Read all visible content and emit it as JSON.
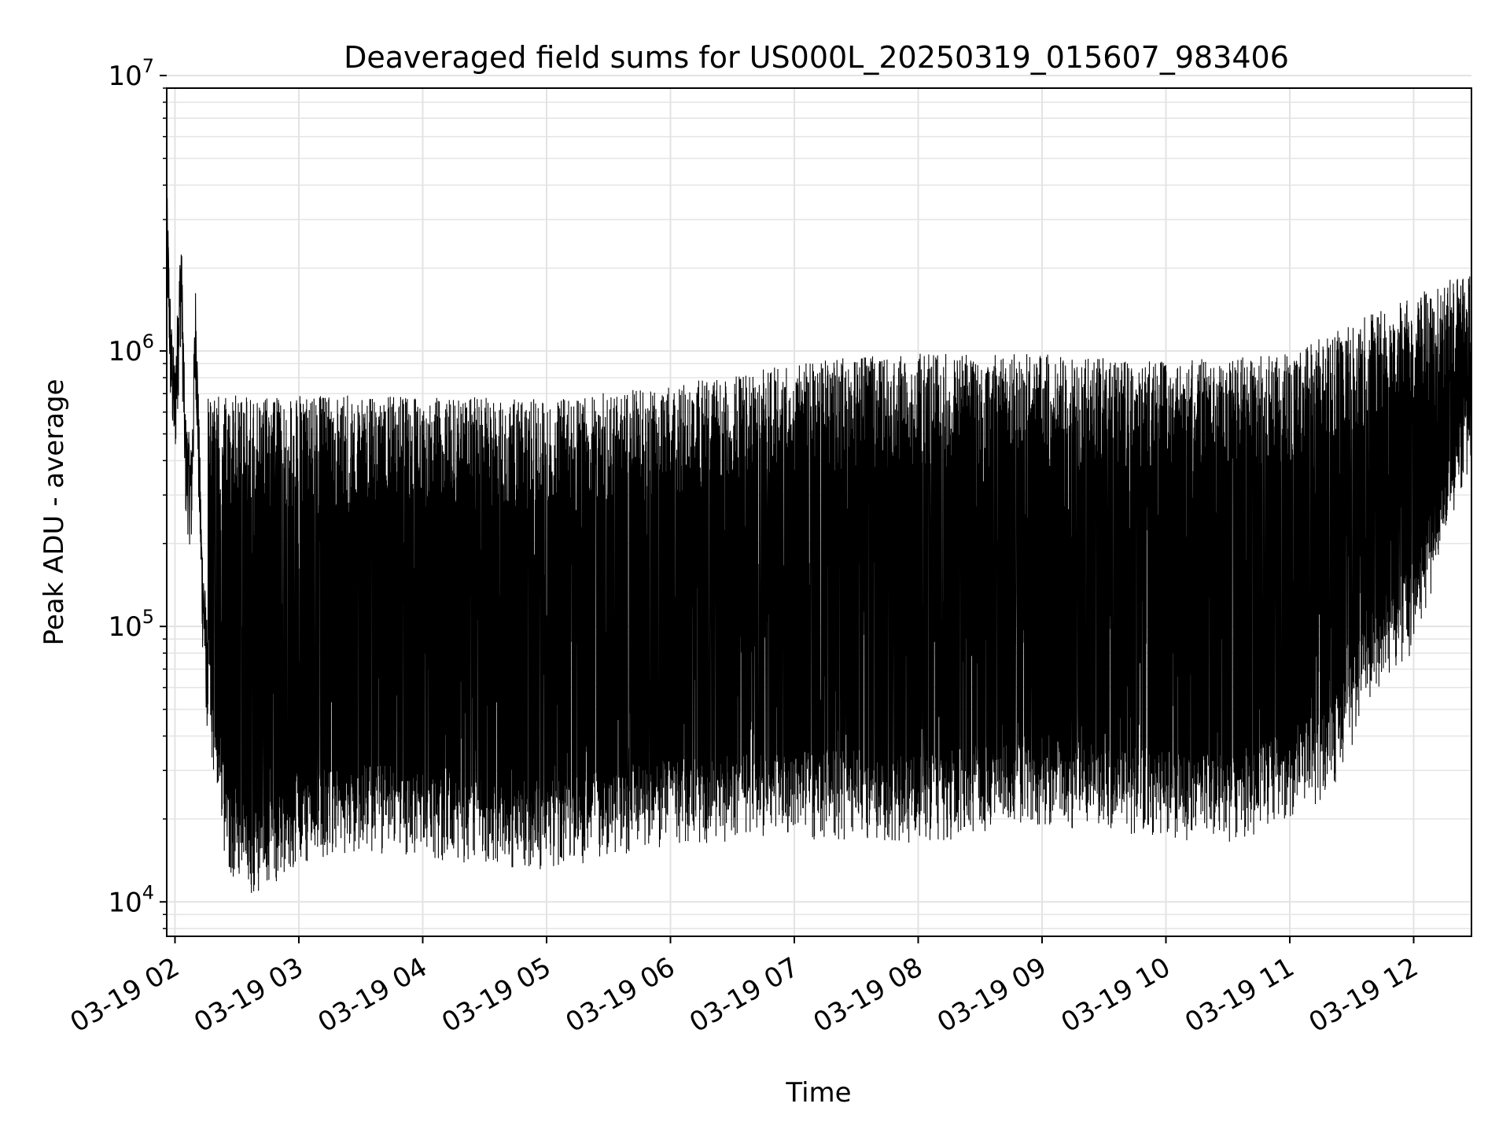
{
  "chart_data": {
    "type": "line",
    "title": "Deaveraged field sums for US000L_20250319_015607_983406",
    "xlabel": "Time",
    "ylabel": "Peak ADU - average",
    "y_scale": "log",
    "x_range": [
      "03-19 01:56",
      "03-19 12:28"
    ],
    "ylim": [
      7500,
      900000
    ],
    "grid": true,
    "grid_minor": true,
    "line_color": "#000000",
    "x_ticks": [
      "03-19 02",
      "03-19 03",
      "03-19 04",
      "03-19 05",
      "03-19 06",
      "03-19 07",
      "03-19 08",
      "03-19 09",
      "03-19 10",
      "03-19 11",
      "03-19 12"
    ],
    "y_ticks": [
      {
        "value": 10000,
        "base": "10",
        "exp": "4"
      },
      {
        "value": 100000,
        "base": "10",
        "exp": "5"
      },
      {
        "value": 1000000,
        "base": "10",
        "exp": "6"
      },
      {
        "value": 10000000,
        "base": "10",
        "exp": "7"
      }
    ],
    "series": [
      {
        "points": [
          [
            "03-19 01:56",
            2800000
          ],
          [
            "03-19 01:58",
            900000
          ],
          [
            "03-19 02:00",
            600000
          ],
          [
            "03-19 02:03",
            1900000
          ],
          [
            "03-19 02:05",
            400000
          ],
          [
            "03-19 02:08",
            300000
          ],
          [
            "03-19 02:10",
            1200000
          ],
          [
            "03-19 02:13",
            150000
          ],
          [
            "03-19 02:16",
            60000
          ],
          [
            "03-19 02:20",
            25000
          ],
          [
            "03-19 02:25",
            17000
          ],
          [
            "03-19 02:30",
            14000
          ],
          [
            "03-19 02:40",
            13000
          ],
          [
            "03-19 02:50",
            15000
          ],
          [
            "03-19 03:00",
            17000
          ],
          [
            "03-19 03:30",
            19000
          ],
          [
            "03-19 04:00",
            18000
          ],
          [
            "03-19 04:30",
            17000
          ],
          [
            "03-19 05:00",
            16000
          ],
          [
            "03-19 05:30",
            18000
          ],
          [
            "03-19 06:00",
            20000
          ],
          [
            "03-19 06:30",
            20000
          ],
          [
            "03-19 07:00",
            21000
          ],
          [
            "03-19 07:30",
            21000
          ],
          [
            "03-19 08:00",
            20000
          ],
          [
            "03-19 08:30",
            22000
          ],
          [
            "03-19 09:00",
            24000
          ],
          [
            "03-19 09:30",
            22000
          ],
          [
            "03-19 10:00",
            21000
          ],
          [
            "03-19 10:30",
            20000
          ],
          [
            "03-19 11:00",
            25000
          ],
          [
            "03-19 11:20",
            30000
          ],
          [
            "03-19 11:40",
            70000
          ],
          [
            "03-19 12:00",
            100000
          ],
          [
            "03-19 12:28",
            500000
          ]
        ],
        "peak_envelope": [
          [
            "03-19 02:16",
            600000
          ],
          [
            "03-19 03:00",
            600000
          ],
          [
            "03-19 04:00",
            600000
          ],
          [
            "03-19 05:00",
            580000
          ],
          [
            "03-19 06:00",
            650000
          ],
          [
            "03-19 07:00",
            800000
          ],
          [
            "03-19 08:00",
            850000
          ],
          [
            "03-19 09:00",
            850000
          ],
          [
            "03-19 10:00",
            800000
          ],
          [
            "03-19 11:00",
            850000
          ],
          [
            "03-19 11:40",
            1200000
          ],
          [
            "03-19 12:28",
            1700000
          ]
        ]
      }
    ]
  }
}
